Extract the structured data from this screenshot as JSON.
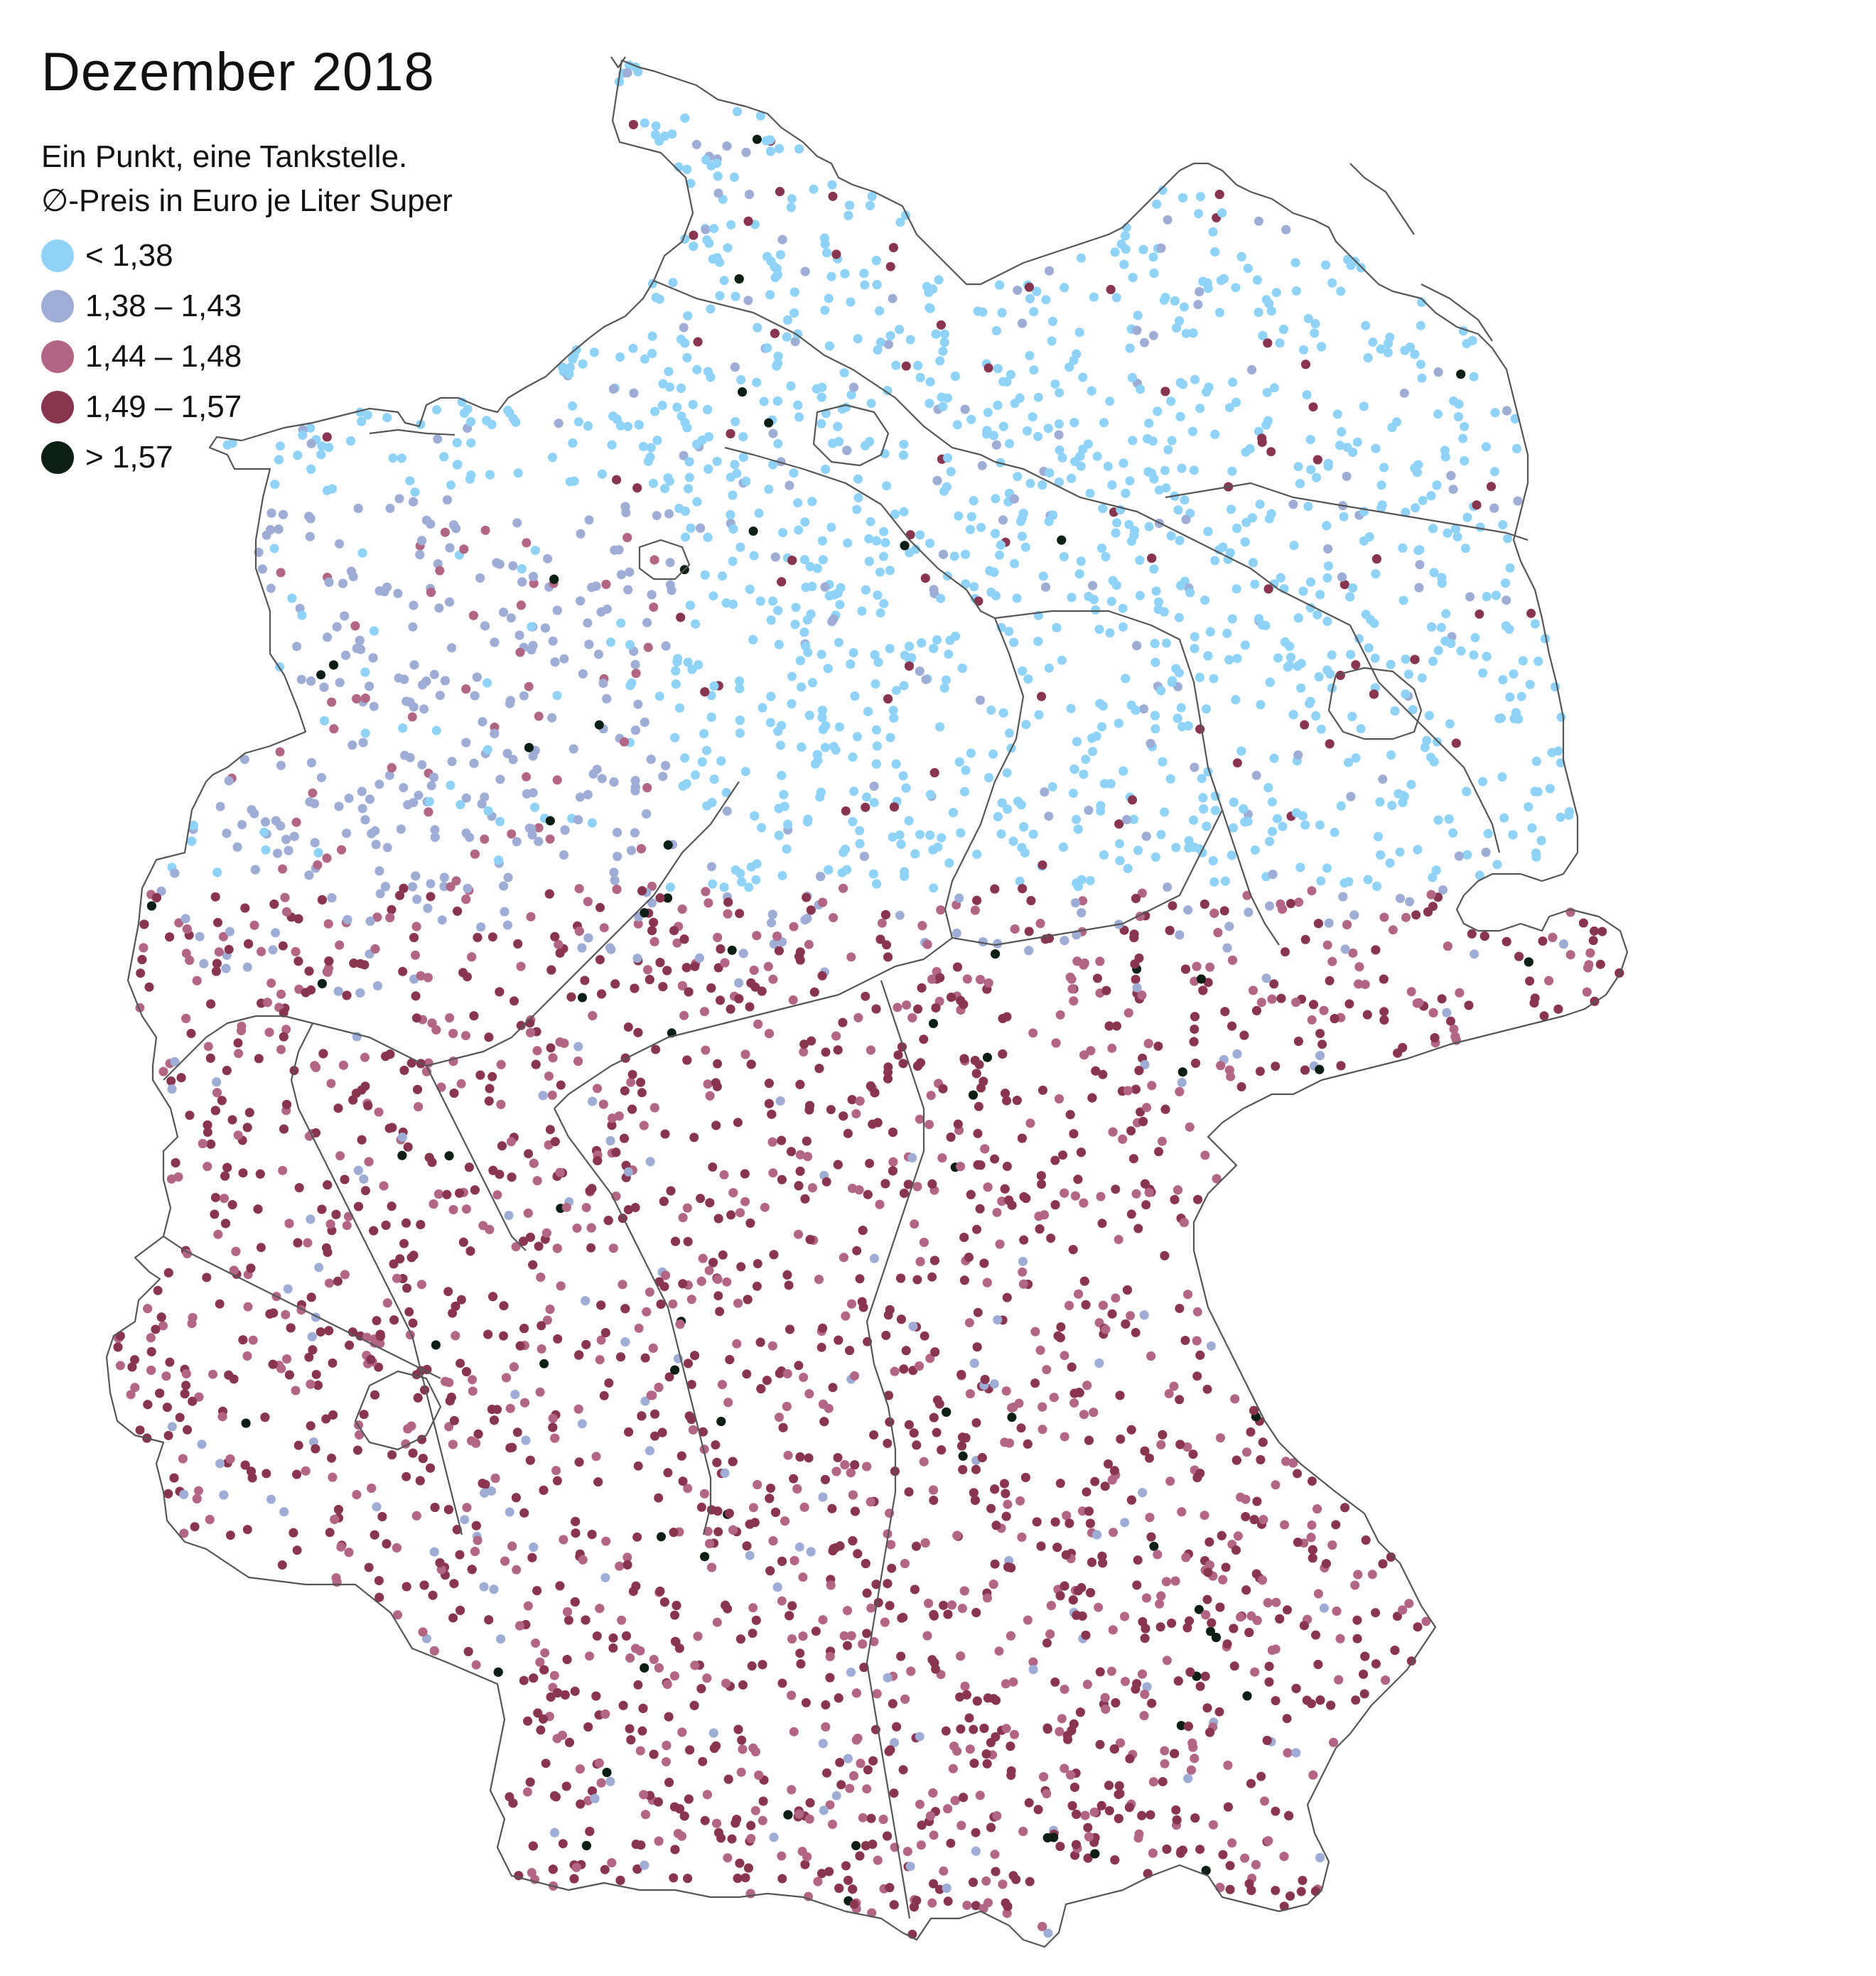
{
  "title": "Dezember 2018",
  "legend": {
    "line1": "Ein Punkt, eine Tankstelle.",
    "line2": "∅-Preis in Euro je Liter Super",
    "items": [
      {
        "label": "< 1,38",
        "color": "#8fd2f7"
      },
      {
        "label": "1,38 – 1,43",
        "color": "#9dadd6"
      },
      {
        "label": "1,44 – 1,48",
        "color": "#b36585"
      },
      {
        "label": "1,49 – 1,57",
        "color": "#8a3550"
      },
      {
        "label": "> 1,57",
        "color": "#0b1f14"
      }
    ]
  },
  "map": {
    "outline_color": "#555555"
  }
}
